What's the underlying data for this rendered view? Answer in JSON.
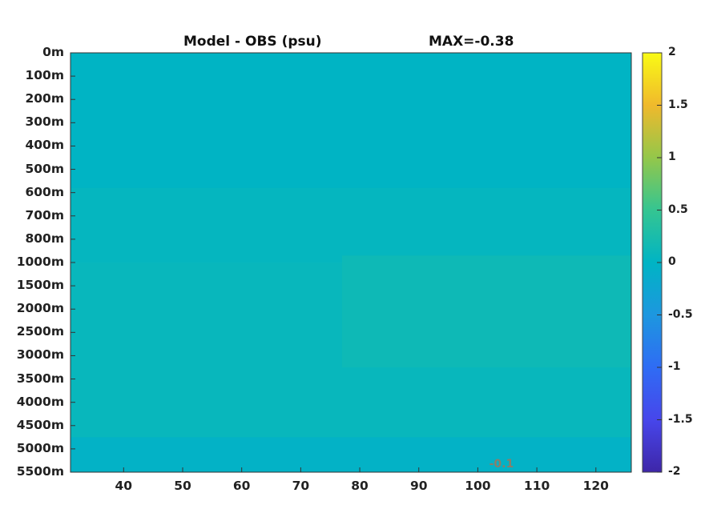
{
  "chart_data": {
    "type": "heatmap",
    "title": "Model - OBS (psu)",
    "max_label": "MAX=-0.38",
    "x_tick_labels": [
      "40",
      "50",
      "60",
      "70",
      "80",
      "90",
      "100",
      "110",
      "120"
    ],
    "x_ticks": [
      40,
      50,
      60,
      70,
      80,
      90,
      100,
      110,
      120
    ],
    "xlim": [
      31,
      126
    ],
    "y_tick_labels": [
      "0m",
      "100m",
      "200m",
      "300m",
      "400m",
      "500m",
      "600m",
      "700m",
      "800m",
      "1000m",
      "1500m",
      "2000m",
      "2500m",
      "3000m",
      "3500m",
      "4000m",
      "4500m",
      "5000m",
      "5500m"
    ],
    "y_axis_reversed": true,
    "colorbar": {
      "colormap": "parula",
      "clim": [
        -2,
        2
      ],
      "tick_labels": [
        "2",
        "1.5",
        "1",
        "0.5",
        "0",
        "-0.5",
        "-1",
        "-1.5",
        "-2"
      ],
      "ticks": [
        2,
        1.5,
        1,
        0.5,
        0,
        -0.5,
        -1,
        -1.5,
        -2
      ]
    },
    "regions": [
      {
        "x": [
          31,
          126
        ],
        "depth_index": [
          0,
          9
        ],
        "value": 0.05
      },
      {
        "x": [
          31,
          126
        ],
        "depth_index": [
          0,
          5.8
        ],
        "value": 0.0
      },
      {
        "x": [
          77,
          126
        ],
        "depth_index": [
          8.7,
          13.5
        ],
        "value": 0.15
      },
      {
        "x": [
          31,
          126
        ],
        "depth_index": [
          16.5,
          18
        ],
        "value": -0.05
      }
    ],
    "contour_labels": [
      {
        "text": "-0.1",
        "x": 104,
        "depth_index": 17.8
      }
    ],
    "grid": false
  }
}
